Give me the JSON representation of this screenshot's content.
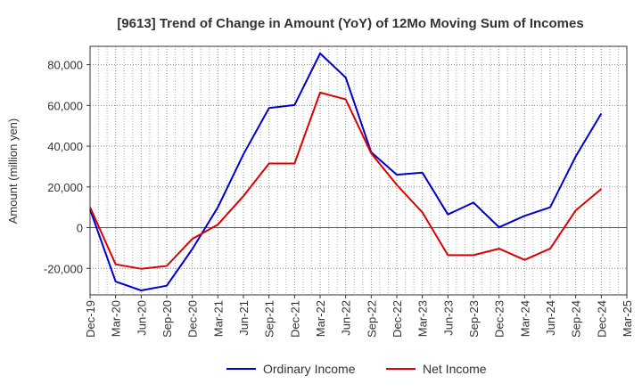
{
  "chart_data": {
    "type": "line",
    "title": "[9613]  Trend of Change in Amount (YoY) of 12Mo Moving Sum of Incomes",
    "ylabel": "Amount (million yen)",
    "xlabel": "",
    "ylim": [
      -33000,
      89000
    ],
    "yticks": [
      -20000,
      0,
      20000,
      40000,
      60000,
      80000
    ],
    "ytick_labels": [
      "-20,000",
      "0",
      "20,000",
      "40,000",
      "60,000",
      "80,000"
    ],
    "categories": [
      "Dec-19",
      "Mar-20",
      "Jun-20",
      "Sep-20",
      "Dec-20",
      "Mar-21",
      "Jun-21",
      "Sep-21",
      "Dec-21",
      "Mar-22",
      "Jun-22",
      "Sep-22",
      "Dec-22",
      "Mar-23",
      "Jun-23",
      "Sep-23",
      "Dec-23",
      "Mar-24",
      "Jun-24",
      "Sep-24",
      "Dec-24",
      "Mar-25"
    ],
    "grid": true,
    "legend_position": "bottom",
    "series": [
      {
        "name": "Ordinary Income",
        "color": "#0000cc",
        "values": [
          9000,
          -26500,
          -30800,
          -28500,
          -10500,
          10000,
          36000,
          58700,
          60200,
          85500,
          73700,
          37000,
          26000,
          27000,
          6500,
          12300,
          200,
          5800,
          10000,
          35000,
          56000,
          null
        ]
      },
      {
        "name": "Net Income",
        "color": "#dd0000",
        "values": [
          10000,
          -18000,
          -20200,
          -18800,
          -5500,
          1500,
          15500,
          31500,
          31500,
          66300,
          63000,
          36500,
          21000,
          7500,
          -13500,
          -13500,
          -10300,
          -15800,
          -10300,
          8500,
          19000,
          null
        ]
      }
    ]
  }
}
